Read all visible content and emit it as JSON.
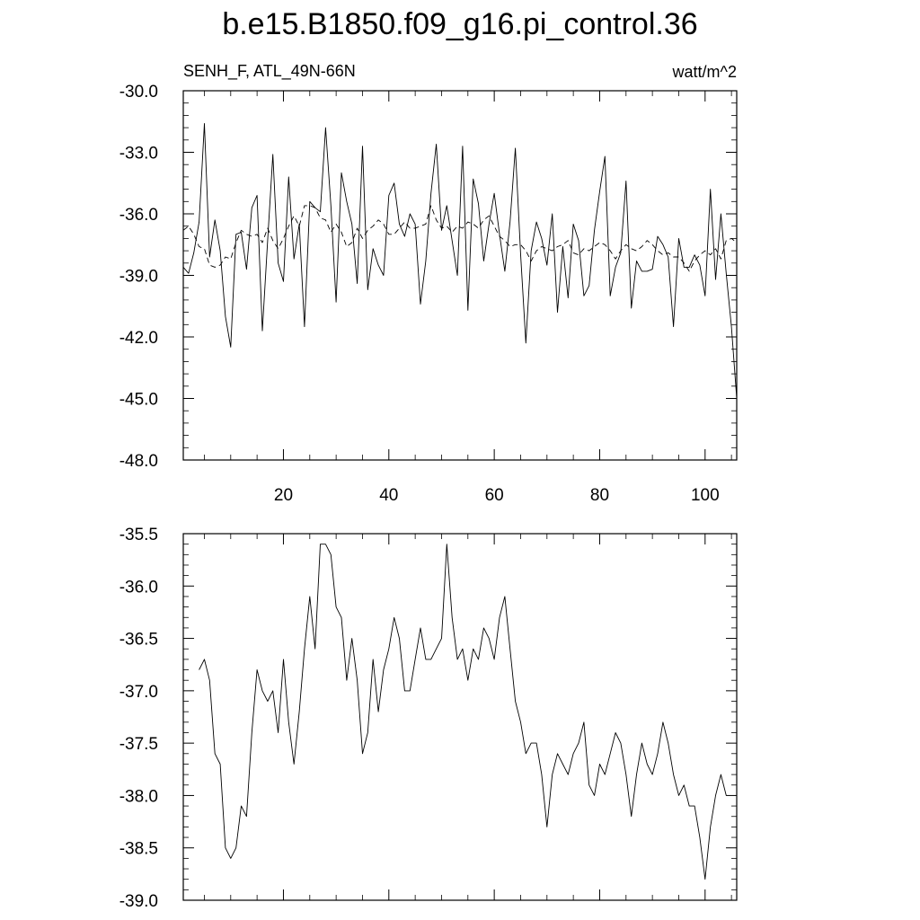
{
  "title": "b.e15.B1850.f09_g16.pi_control.36",
  "top_left_label": "SENH_F, ATL_49N-66N",
  "top_right_label": "watt/m^2",
  "chart_data": [
    {
      "type": "line",
      "panel": "top",
      "xlim": [
        1,
        106
      ],
      "ylim": [
        -48,
        -30
      ],
      "xticks": [
        20,
        40,
        60,
        80,
        100
      ],
      "xtick_labels": [
        "20",
        "40",
        "60",
        "80",
        "100"
      ],
      "yticks": [
        -30,
        -33,
        -36,
        -39,
        -42,
        -45,
        -48
      ],
      "ytick_labels": [
        "-30.0",
        "-33.0",
        "-36.0",
        "-39.0",
        "-42.0",
        "-45.0",
        "-48.0"
      ],
      "grid": false,
      "x": [
        1,
        2,
        3,
        4,
        5,
        6,
        7,
        8,
        9,
        10,
        11,
        12,
        13,
        14,
        15,
        16,
        17,
        18,
        19,
        20,
        21,
        22,
        23,
        24,
        25,
        26,
        27,
        28,
        29,
        30,
        31,
        32,
        33,
        34,
        35,
        36,
        37,
        38,
        39,
        40,
        41,
        42,
        43,
        44,
        45,
        46,
        47,
        48,
        49,
        50,
        51,
        52,
        53,
        54,
        55,
        56,
        57,
        58,
        59,
        60,
        61,
        62,
        63,
        64,
        65,
        66,
        67,
        68,
        69,
        70,
        71,
        72,
        73,
        74,
        75,
        76,
        77,
        78,
        79,
        80,
        81,
        82,
        83,
        84,
        85,
        86,
        87,
        88,
        89,
        90,
        91,
        92,
        93,
        94,
        95,
        96,
        97,
        98,
        99,
        100,
        101,
        102,
        103,
        104,
        105,
        106
      ],
      "series": [
        {
          "style": "solid",
          "values": [
            -38.6,
            -38.9,
            -37.9,
            -36.4,
            -31.6,
            -38.1,
            -36.3,
            -37.8,
            -41.0,
            -42.5,
            -37.0,
            -36.9,
            -38.7,
            -35.7,
            -35.1,
            -41.7,
            -37.3,
            -33.1,
            -38.4,
            -39.3,
            -34.2,
            -38.2,
            -36.5,
            -41.5,
            -35.4,
            -35.7,
            -35.9,
            -31.8,
            -35.6,
            -40.3,
            -34.0,
            -35.4,
            -36.5,
            -39.4,
            -32.7,
            -39.7,
            -37.7,
            -38.5,
            -39.0,
            -35.1,
            -34.5,
            -36.5,
            -37.1,
            -36.0,
            -36.5,
            -40.4,
            -38.3,
            -35.0,
            -32.6,
            -36.8,
            -35.6,
            -37.3,
            -39.0,
            -32.7,
            -40.7,
            -34.3,
            -35.5,
            -38.3,
            -36.5,
            -35.0,
            -37.0,
            -38.8,
            -36.4,
            -32.8,
            -38.0,
            -42.3,
            -37.8,
            -36.4,
            -37.2,
            -38.5,
            -36.0,
            -40.8,
            -37.6,
            -40.1,
            -36.5,
            -37.3,
            -40.0,
            -39.5,
            -36.8,
            -34.9,
            -33.2,
            -40.0,
            -38.6,
            -37.9,
            -34.4,
            -40.6,
            -38.3,
            -38.8,
            -38.8,
            -38.7,
            -37.1,
            -37.5,
            -38.1,
            -41.5,
            -37.2,
            -38.6,
            -38.6,
            -38.0,
            -38.5,
            -40.0,
            -34.8,
            -39.2,
            -36.0,
            -38.9,
            -41.5,
            -45.0
          ]
        },
        {
          "style": "dashed",
          "values": [
            -36.8,
            -36.6,
            -37.0,
            -37.6,
            -37.7,
            -38.5,
            -38.6,
            -38.5,
            -38.1,
            -38.2,
            -37.4,
            -36.8,
            -37.0,
            -37.1,
            -37.0,
            -37.4,
            -36.7,
            -37.3,
            -37.7,
            -37.2,
            -36.6,
            -36.1,
            -36.6,
            -35.6,
            -35.6,
            -35.7,
            -36.2,
            -36.3,
            -36.9,
            -36.5,
            -36.9,
            -37.6,
            -37.4,
            -36.7,
            -37.2,
            -36.8,
            -36.6,
            -36.3,
            -36.5,
            -37.0,
            -37.0,
            -36.7,
            -36.4,
            -36.7,
            -36.7,
            -36.6,
            -36.5,
            -35.6,
            -36.3,
            -36.7,
            -36.6,
            -36.9,
            -36.6,
            -36.7,
            -36.4,
            -36.5,
            -36.7,
            -36.3,
            -36.1,
            -36.6,
            -37.1,
            -37.3,
            -37.6,
            -37.5,
            -37.5,
            -37.8,
            -38.3,
            -37.8,
            -37.6,
            -37.7,
            -37.8,
            -37.6,
            -37.5,
            -37.3,
            -37.9,
            -38.0,
            -37.7,
            -37.8,
            -37.6,
            -37.4,
            -37.5,
            -37.8,
            -38.2,
            -37.8,
            -37.5,
            -37.7,
            -37.8,
            -37.6,
            -37.3,
            -37.5,
            -37.8,
            -38.0,
            -37.9,
            -38.1,
            -38.1,
            -38.4,
            -38.8,
            -38.3,
            -38.0,
            -37.8,
            -38.0,
            -37.7,
            -38.2,
            -37.3,
            -37.2,
            -37.4
          ]
        }
      ]
    },
    {
      "type": "line",
      "panel": "bottom",
      "xlim": [
        1,
        106
      ],
      "ylim": [
        -39.0,
        -35.5
      ],
      "xticks": [
        20,
        40,
        60,
        80,
        100
      ],
      "yticks": [
        -35.5,
        -36.0,
        -36.5,
        -37.0,
        -37.5,
        -38.0,
        -38.5,
        -39.0
      ],
      "ytick_labels": [
        "-35.5",
        "-36.0",
        "-36.5",
        "-37.0",
        "-37.5",
        "-38.0",
        "-38.5",
        "-39.0"
      ],
      "grid": false,
      "x": [
        4,
        5,
        6,
        7,
        8,
        9,
        10,
        11,
        12,
        13,
        14,
        15,
        16,
        17,
        18,
        19,
        20,
        21,
        22,
        23,
        24,
        25,
        26,
        27,
        28,
        29,
        30,
        31,
        32,
        33,
        34,
        35,
        36,
        37,
        38,
        39,
        40,
        41,
        42,
        43,
        44,
        45,
        46,
        47,
        48,
        49,
        50,
        51,
        52,
        53,
        54,
        55,
        56,
        57,
        58,
        59,
        60,
        61,
        62,
        63,
        64,
        65,
        66,
        67,
        68,
        69,
        70,
        71,
        72,
        73,
        74,
        75,
        76,
        77,
        78,
        79,
        80,
        81,
        82,
        83,
        84,
        85,
        86,
        87,
        88,
        89,
        90,
        91,
        92,
        93,
        94,
        95,
        96,
        97,
        98,
        99,
        100,
        101,
        102,
        103,
        104
      ],
      "series": [
        {
          "style": "solid",
          "values": [
            -36.8,
            -36.7,
            -36.9,
            -37.6,
            -37.7,
            -38.5,
            -38.6,
            -38.5,
            -38.1,
            -38.2,
            -37.4,
            -36.8,
            -37.0,
            -37.1,
            -37.0,
            -37.4,
            -36.7,
            -37.3,
            -37.7,
            -37.2,
            -36.6,
            -36.1,
            -36.6,
            -35.6,
            -35.6,
            -35.7,
            -36.2,
            -36.3,
            -36.9,
            -36.5,
            -36.9,
            -37.6,
            -37.4,
            -36.7,
            -37.2,
            -36.8,
            -36.6,
            -36.3,
            -36.5,
            -37.0,
            -37.0,
            -36.7,
            -36.4,
            -36.7,
            -36.7,
            -36.6,
            -36.5,
            -35.6,
            -36.3,
            -36.7,
            -36.6,
            -36.9,
            -36.6,
            -36.7,
            -36.4,
            -36.5,
            -36.7,
            -36.3,
            -36.1,
            -36.6,
            -37.1,
            -37.3,
            -37.6,
            -37.5,
            -37.5,
            -37.8,
            -38.3,
            -37.8,
            -37.6,
            -37.7,
            -37.8,
            -37.6,
            -37.5,
            -37.3,
            -37.9,
            -38.0,
            -37.7,
            -37.8,
            -37.6,
            -37.4,
            -37.5,
            -37.8,
            -38.2,
            -37.8,
            -37.5,
            -37.7,
            -37.8,
            -37.6,
            -37.3,
            -37.5,
            -37.8,
            -38.0,
            -37.9,
            -38.1,
            -38.1,
            -38.4,
            -38.8,
            -38.3,
            -38.0,
            -37.8,
            -38.0
          ]
        }
      ]
    }
  ]
}
